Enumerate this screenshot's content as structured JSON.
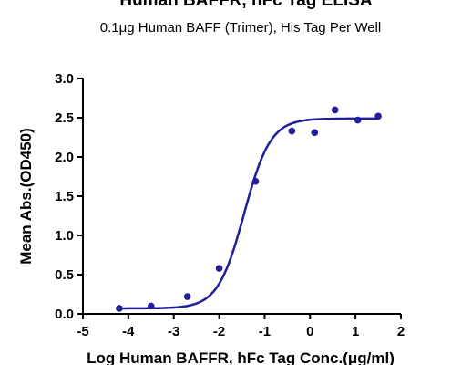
{
  "chart_data": {
    "type": "scatter",
    "title": "Human BAFFR, hFc Tag ELISA",
    "subtitle": "0.1μg Human BAFF (Trimer), His Tag Per Well",
    "xlabel": "Log Human BAFFR, hFc Tag Conc.(μg/ml)",
    "ylabel": "Mean Abs.(OD450)",
    "xlim": [
      -5,
      2
    ],
    "ylim": [
      0,
      3
    ],
    "x_ticks": [
      "-5",
      "-4",
      "-3",
      "-2",
      "-1",
      "0",
      "1",
      "2"
    ],
    "y_ticks": [
      "0.0",
      "0.5",
      "1.0",
      "1.5",
      "2.0",
      "2.5",
      "3.0"
    ],
    "points": {
      "x": [
        -4.2,
        -3.5,
        -2.7,
        -2.0,
        -1.2,
        -0.4,
        0.1,
        0.55,
        1.05,
        1.5
      ],
      "y": [
        0.07,
        0.1,
        0.22,
        0.58,
        1.69,
        2.33,
        2.31,
        2.6,
        2.47,
        2.52
      ]
    },
    "fit": {
      "type": "4PL",
      "bottom": 0.07,
      "top": 2.49,
      "log_ec50": -1.45,
      "hill_slope": 1.5
    },
    "grid": false,
    "legend": "none",
    "color": "#1f1f9a"
  }
}
